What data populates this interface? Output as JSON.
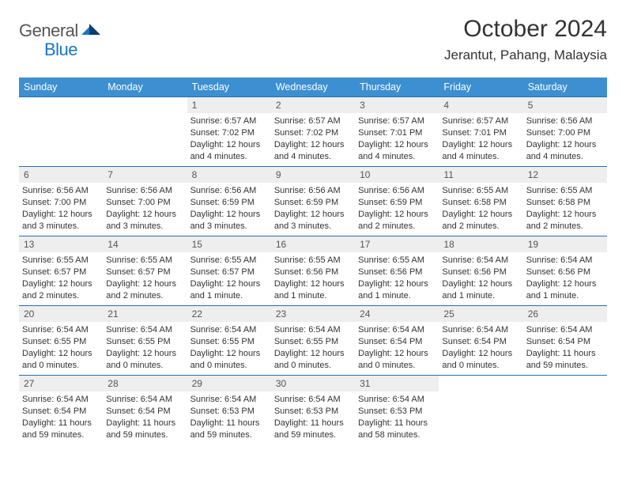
{
  "logo": {
    "text1": "General",
    "text2": "Blue"
  },
  "title": "October 2024",
  "location": "Jerantut, Pahang, Malaysia",
  "weekdays": [
    "Sunday",
    "Monday",
    "Tuesday",
    "Wednesday",
    "Thursday",
    "Friday",
    "Saturday"
  ],
  "colors": {
    "header_bg": "#3c8fd1",
    "header_text": "#ffffff",
    "daynum_bg": "#eeeeee",
    "week_border": "#2b6fa8",
    "logo_general": "#555555",
    "logo_blue": "#1976c5"
  },
  "fonts": {
    "title_size": 30,
    "location_size": 17,
    "weekday_size": 12.5,
    "daynum_size": 12,
    "content_size": 11
  },
  "weeks": [
    [
      {
        "n": "",
        "sunrise": "",
        "sunset": "",
        "daylight": ""
      },
      {
        "n": "",
        "sunrise": "",
        "sunset": "",
        "daylight": ""
      },
      {
        "n": "1",
        "sunrise": "Sunrise: 6:57 AM",
        "sunset": "Sunset: 7:02 PM",
        "daylight": "Daylight: 12 hours and 4 minutes."
      },
      {
        "n": "2",
        "sunrise": "Sunrise: 6:57 AM",
        "sunset": "Sunset: 7:02 PM",
        "daylight": "Daylight: 12 hours and 4 minutes."
      },
      {
        "n": "3",
        "sunrise": "Sunrise: 6:57 AM",
        "sunset": "Sunset: 7:01 PM",
        "daylight": "Daylight: 12 hours and 4 minutes."
      },
      {
        "n": "4",
        "sunrise": "Sunrise: 6:57 AM",
        "sunset": "Sunset: 7:01 PM",
        "daylight": "Daylight: 12 hours and 4 minutes."
      },
      {
        "n": "5",
        "sunrise": "Sunrise: 6:56 AM",
        "sunset": "Sunset: 7:00 PM",
        "daylight": "Daylight: 12 hours and 4 minutes."
      }
    ],
    [
      {
        "n": "6",
        "sunrise": "Sunrise: 6:56 AM",
        "sunset": "Sunset: 7:00 PM",
        "daylight": "Daylight: 12 hours and 3 minutes."
      },
      {
        "n": "7",
        "sunrise": "Sunrise: 6:56 AM",
        "sunset": "Sunset: 7:00 PM",
        "daylight": "Daylight: 12 hours and 3 minutes."
      },
      {
        "n": "8",
        "sunrise": "Sunrise: 6:56 AM",
        "sunset": "Sunset: 6:59 PM",
        "daylight": "Daylight: 12 hours and 3 minutes."
      },
      {
        "n": "9",
        "sunrise": "Sunrise: 6:56 AM",
        "sunset": "Sunset: 6:59 PM",
        "daylight": "Daylight: 12 hours and 3 minutes."
      },
      {
        "n": "10",
        "sunrise": "Sunrise: 6:56 AM",
        "sunset": "Sunset: 6:59 PM",
        "daylight": "Daylight: 12 hours and 2 minutes."
      },
      {
        "n": "11",
        "sunrise": "Sunrise: 6:55 AM",
        "sunset": "Sunset: 6:58 PM",
        "daylight": "Daylight: 12 hours and 2 minutes."
      },
      {
        "n": "12",
        "sunrise": "Sunrise: 6:55 AM",
        "sunset": "Sunset: 6:58 PM",
        "daylight": "Daylight: 12 hours and 2 minutes."
      }
    ],
    [
      {
        "n": "13",
        "sunrise": "Sunrise: 6:55 AM",
        "sunset": "Sunset: 6:57 PM",
        "daylight": "Daylight: 12 hours and 2 minutes."
      },
      {
        "n": "14",
        "sunrise": "Sunrise: 6:55 AM",
        "sunset": "Sunset: 6:57 PM",
        "daylight": "Daylight: 12 hours and 2 minutes."
      },
      {
        "n": "15",
        "sunrise": "Sunrise: 6:55 AM",
        "sunset": "Sunset: 6:57 PM",
        "daylight": "Daylight: 12 hours and 1 minute."
      },
      {
        "n": "16",
        "sunrise": "Sunrise: 6:55 AM",
        "sunset": "Sunset: 6:56 PM",
        "daylight": "Daylight: 12 hours and 1 minute."
      },
      {
        "n": "17",
        "sunrise": "Sunrise: 6:55 AM",
        "sunset": "Sunset: 6:56 PM",
        "daylight": "Daylight: 12 hours and 1 minute."
      },
      {
        "n": "18",
        "sunrise": "Sunrise: 6:54 AM",
        "sunset": "Sunset: 6:56 PM",
        "daylight": "Daylight: 12 hours and 1 minute."
      },
      {
        "n": "19",
        "sunrise": "Sunrise: 6:54 AM",
        "sunset": "Sunset: 6:56 PM",
        "daylight": "Daylight: 12 hours and 1 minute."
      }
    ],
    [
      {
        "n": "20",
        "sunrise": "Sunrise: 6:54 AM",
        "sunset": "Sunset: 6:55 PM",
        "daylight": "Daylight: 12 hours and 0 minutes."
      },
      {
        "n": "21",
        "sunrise": "Sunrise: 6:54 AM",
        "sunset": "Sunset: 6:55 PM",
        "daylight": "Daylight: 12 hours and 0 minutes."
      },
      {
        "n": "22",
        "sunrise": "Sunrise: 6:54 AM",
        "sunset": "Sunset: 6:55 PM",
        "daylight": "Daylight: 12 hours and 0 minutes."
      },
      {
        "n": "23",
        "sunrise": "Sunrise: 6:54 AM",
        "sunset": "Sunset: 6:55 PM",
        "daylight": "Daylight: 12 hours and 0 minutes."
      },
      {
        "n": "24",
        "sunrise": "Sunrise: 6:54 AM",
        "sunset": "Sunset: 6:54 PM",
        "daylight": "Daylight: 12 hours and 0 minutes."
      },
      {
        "n": "25",
        "sunrise": "Sunrise: 6:54 AM",
        "sunset": "Sunset: 6:54 PM",
        "daylight": "Daylight: 12 hours and 0 minutes."
      },
      {
        "n": "26",
        "sunrise": "Sunrise: 6:54 AM",
        "sunset": "Sunset: 6:54 PM",
        "daylight": "Daylight: 11 hours and 59 minutes."
      }
    ],
    [
      {
        "n": "27",
        "sunrise": "Sunrise: 6:54 AM",
        "sunset": "Sunset: 6:54 PM",
        "daylight": "Daylight: 11 hours and 59 minutes."
      },
      {
        "n": "28",
        "sunrise": "Sunrise: 6:54 AM",
        "sunset": "Sunset: 6:54 PM",
        "daylight": "Daylight: 11 hours and 59 minutes."
      },
      {
        "n": "29",
        "sunrise": "Sunrise: 6:54 AM",
        "sunset": "Sunset: 6:53 PM",
        "daylight": "Daylight: 11 hours and 59 minutes."
      },
      {
        "n": "30",
        "sunrise": "Sunrise: 6:54 AM",
        "sunset": "Sunset: 6:53 PM",
        "daylight": "Daylight: 11 hours and 59 minutes."
      },
      {
        "n": "31",
        "sunrise": "Sunrise: 6:54 AM",
        "sunset": "Sunset: 6:53 PM",
        "daylight": "Daylight: 11 hours and 58 minutes."
      },
      {
        "n": "",
        "sunrise": "",
        "sunset": "",
        "daylight": ""
      },
      {
        "n": "",
        "sunrise": "",
        "sunset": "",
        "daylight": ""
      }
    ]
  ]
}
